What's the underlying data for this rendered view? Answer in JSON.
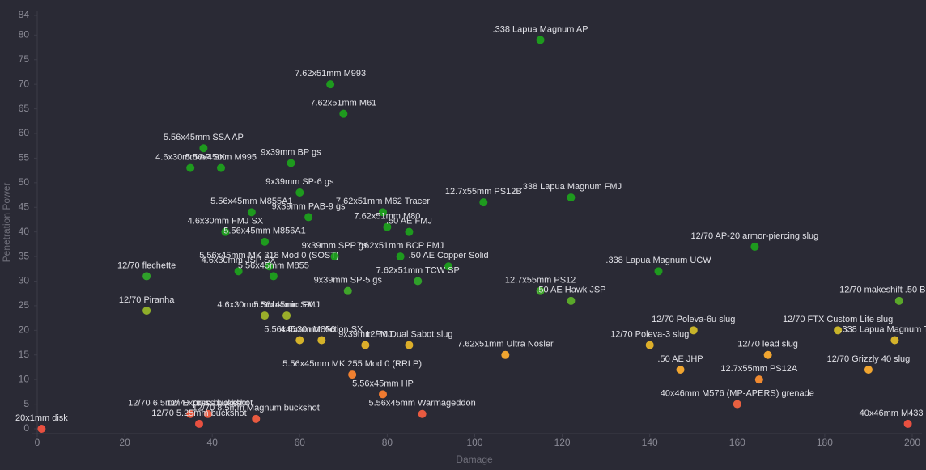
{
  "chart_data": {
    "type": "scatter",
    "x_label": "Damage",
    "y_label": "Penetration Power",
    "xlim": [
      0,
      200
    ],
    "xticks": [
      0,
      20,
      40,
      60,
      80,
      100,
      120,
      140,
      160,
      180,
      200
    ],
    "ylim": [
      0,
      84
    ],
    "yticks": [
      0,
      5,
      10,
      15,
      20,
      25,
      30,
      35,
      40,
      45,
      50,
      55,
      60,
      65,
      70,
      75,
      80,
      84
    ],
    "point_labels": [
      ".338 Lapua Magnum AP",
      "7.62x51mm M993",
      "7.62x51mm M61",
      "5.56x45mm SSA AP",
      "4.6x30mm AP SX",
      "5.56x45mm M995",
      "9x39mm BP gs",
      "9x39mm SP-6 gs",
      "5.56x45mm M855A1",
      "9x39mm PAB-9 gs",
      "7.62x51mm M62 Tracer",
      "7.62x51mm M80",
      ".50 AE FMJ",
      "12.7x55mm PS12B",
      ".338 Lapua Magnum FMJ",
      "4.6x30mm FMJ SX",
      "5.56x45mm M856A1",
      "9x39mm SPP gs",
      "7.62x51mm BCP FMJ",
      ".50 AE Copper Solid",
      "5.56x45mm MK 318 Mod 0 (SOST)",
      "4.6x30mm JSP SX",
      "5.56x45mm M855",
      "7.62x51mm TCW SP",
      "9x39mm SP-5 gs",
      "12/70 flechette",
      "12/70 Piranha",
      "12.7x55mm PS12",
      ".50 AE Hawk JSP",
      ".338 Lapua Magnum UCW",
      "12/70 AP-20 armor-piercing slug",
      "12/70 makeshift .50 BMG slug",
      "4.6x30mm Subsonic SX",
      "5.56x45mm FMJ",
      "5.56x45mm M856",
      "4.6x30mm Action SX",
      "9x39mm FMJ",
      "12/70 Dual Sabot slug",
      "7.62x51mm Ultra Nosler",
      "12/70 Poleva-6u slug",
      "12/70 Poleva-3 slug",
      ".50 AE JHP",
      "12/70 lead slug",
      "12/70 FTX Custom Lite slug",
      ".338 Lapua Magnum TAC-X",
      "12/70 Grizzly 40 slug",
      "12.7x55mm PS12A",
      "40x46mm M576 (MP-APERS) grenade",
      "5.56x45mm MK 255 Mod 0 (RRLP)",
      "5.56x45mm HP",
      "5.56x45mm Warmageddon",
      "12/70 6.5mm Express buckshot",
      "12/70 7mm buckshot",
      "12/70 8.5mm Magnum buckshot",
      "12/70 5.25mm buckshot",
      "20x1mm disk",
      "40x46mm M433 (HEDP)"
    ],
    "x": [
      115,
      67,
      70,
      38,
      35,
      42,
      58,
      60,
      49,
      62,
      79,
      80,
      85,
      102,
      122,
      43,
      52,
      68,
      83,
      94,
      53,
      46,
      54,
      87,
      71,
      25,
      25,
      115,
      122,
      142,
      164,
      197,
      52,
      57,
      60,
      65,
      75,
      85,
      107,
      150,
      140,
      147,
      167,
      183,
      196,
      190,
      165,
      160,
      72,
      79,
      88,
      35,
      39,
      50,
      37,
      1,
      199
    ],
    "values": [
      79,
      70,
      64,
      57,
      53,
      53,
      54,
      48,
      44,
      43,
      44,
      41,
      40,
      46,
      47,
      40,
      38,
      35,
      35,
      33,
      33,
      32,
      31,
      30,
      28,
      31,
      24,
      28,
      26,
      32,
      37,
      26,
      23,
      23,
      18,
      18,
      17,
      17,
      15,
      20,
      17,
      12,
      15,
      20,
      18,
      12,
      10,
      5,
      11,
      7,
      3,
      3,
      3,
      2,
      1,
      0,
      1
    ],
    "colors": [
      "#1e9a1e",
      "#1e9a1e",
      "#1e9a1e",
      "#1e9a1e",
      "#1e9a1e",
      "#1e9a1e",
      "#1e9a1e",
      "#1e9a1e",
      "#1e9a1e",
      "#1e9a1e",
      "#1e9a1e",
      "#1e9a1e",
      "#1e9a1e",
      "#1e9a1e",
      "#1e9a1e",
      "#1e9a1e",
      "#1e9a1e",
      "#1e9a1e",
      "#1e9a1e",
      "#1e9a1e",
      "#1e9a1e",
      "#1e9a1e",
      "#1e9a1e",
      "#2fa02a",
      "#3fa52a",
      "#2fa02a",
      "#8fae2a",
      "#3fa52a",
      "#5aa82a",
      "#1e9a1e",
      "#1e9a1e",
      "#5aa82a",
      "#9aae2a",
      "#9aae2a",
      "#d4b22a",
      "#d4b22a",
      "#dcae2a",
      "#dcae2a",
      "#f0a530",
      "#c8b42a",
      "#dcae2a",
      "#f0a530",
      "#f0a530",
      "#c8b42a",
      "#d4b22a",
      "#f0a530",
      "#f08a30",
      "#e86040",
      "#f08030",
      "#f07a30",
      "#e85a40",
      "#e85a40",
      "#e85a40",
      "#e85a40",
      "#e85040",
      "#e85040",
      "#e85040"
    ]
  }
}
